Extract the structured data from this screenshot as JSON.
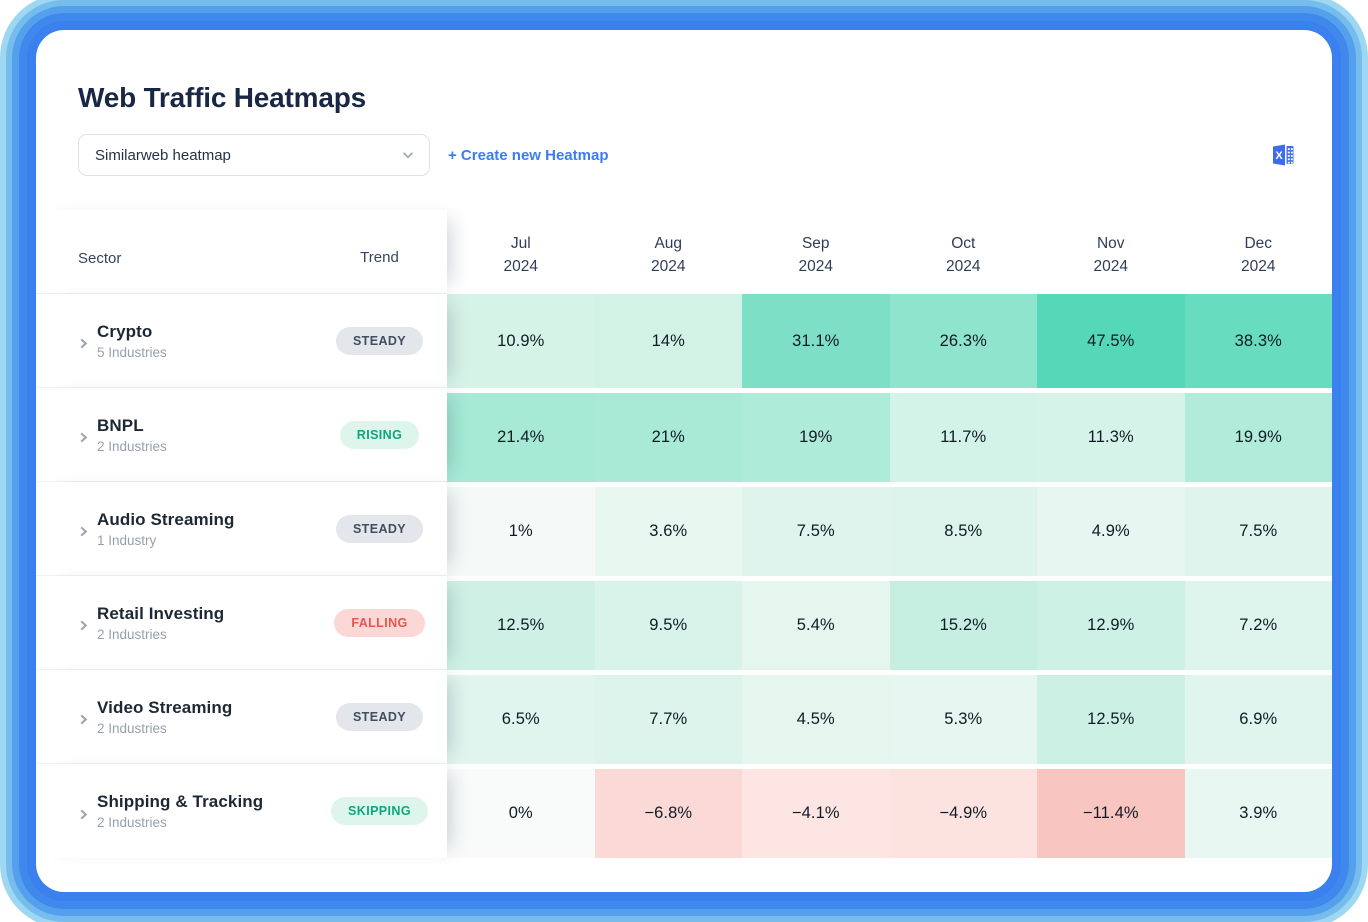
{
  "header": {
    "title": "Web Traffic Heatmaps",
    "dropdown_value": "Similarweb heatmap",
    "create_link": "+ Create new Heatmap",
    "excel_icon": "excel-export-icon"
  },
  "table": {
    "sector_header": "Sector",
    "trend_header": "Trend",
    "months": [
      {
        "month": "Jul",
        "year": "2024"
      },
      {
        "month": "Aug",
        "year": "2024"
      },
      {
        "month": "Sep",
        "year": "2024"
      },
      {
        "month": "Oct",
        "year": "2024"
      },
      {
        "month": "Nov",
        "year": "2024"
      },
      {
        "month": "Dec",
        "year": "2024"
      }
    ],
    "rows": [
      {
        "sector": "Crypto",
        "industries": "5 Industries",
        "trend": "STEADY",
        "trend_type": "steady",
        "values": [
          "10.9%",
          "14%",
          "31.1%",
          "26.3%",
          "47.5%",
          "38.3%"
        ],
        "cell_colors": [
          "#d6f3e8",
          "#d2f2e6",
          "#7de0c6",
          "#8fe4cd",
          "#55d8b8",
          "#68dcbf"
        ]
      },
      {
        "sector": "BNPL",
        "industries": "2 Industries",
        "trend": "RISING",
        "trend_type": "rising",
        "values": [
          "21.4%",
          "21%",
          "19%",
          "11.7%",
          "11.3%",
          "19.9%"
        ],
        "cell_colors": [
          "#a6ead5",
          "#a8ead6",
          "#aeebd8",
          "#d3f2e8",
          "#d5f3e9",
          "#b0ecd9"
        ]
      },
      {
        "sector": "Audio Streaming",
        "industries": "1 Industry",
        "trend": "STEADY",
        "trend_type": "steady",
        "values": [
          "1%",
          "3.6%",
          "7.5%",
          "8.5%",
          "4.9%",
          "7.5%"
        ],
        "cell_colors": [
          "#f5faf8",
          "#e9f7f1",
          "#def4ec",
          "#dcf4eb",
          "#e6f6f0",
          "#def4ec"
        ]
      },
      {
        "sector": "Retail Investing",
        "industries": "2 Industries",
        "trend": "FALLING",
        "trend_type": "falling",
        "values": [
          "12.5%",
          "9.5%",
          "5.4%",
          "15.2%",
          "12.9%",
          "7.2%"
        ],
        "cell_colors": [
          "#cff1e5",
          "#d8f3ea",
          "#e4f6ee",
          "#c7efe1",
          "#cef1e5",
          "#def5ed"
        ]
      },
      {
        "sector": "Video Streaming",
        "industries": "2 Industries",
        "trend": "STEADY",
        "trend_type": "steady",
        "values": [
          "6.5%",
          "7.7%",
          "4.5%",
          "5.3%",
          "12.5%",
          "6.9%"
        ],
        "cell_colors": [
          "#dff5ed",
          "#ddf4ec",
          "#e4f6ee",
          "#e6f6f0",
          "#ccf0e4",
          "#dff5ed"
        ]
      },
      {
        "sector": "Shipping & Tracking",
        "industries": "2 Industries",
        "trend": "SKIPPING",
        "trend_type": "skipping",
        "values": [
          "0%",
          "−6.8%",
          "−4.1%",
          "−4.9%",
          "−11.4%",
          "3.9%"
        ],
        "cell_colors": [
          "#f8fbfa",
          "#fbd9d6",
          "#fce5e2",
          "#fce3e0",
          "#f8c5c0",
          "#e8f7f1"
        ]
      }
    ]
  },
  "colors": {
    "accent_blue": "#3b7cf6",
    "title_navy": "#1a2744",
    "excel_icon_blue": "#3d6ce8",
    "frame_glow_outer": "#9ed7f2",
    "frame_glow_inner": "#3a80ee",
    "badges": {
      "steady": {
        "bg": "#e3e7ec",
        "text": "#414e61"
      },
      "rising": {
        "bg": "#def5ec",
        "text": "#0ea67c"
      },
      "falling": {
        "bg": "#fbd8d5",
        "text": "#e2574e"
      },
      "skipping": {
        "bg": "#def5ec",
        "text": "#0ea67c"
      }
    }
  },
  "chart_data": {
    "type": "heatmap",
    "x_categories": [
      "Jul 2024",
      "Aug 2024",
      "Sep 2024",
      "Oct 2024",
      "Nov 2024",
      "Dec 2024"
    ],
    "y_categories": [
      "Crypto",
      "BNPL",
      "Audio Streaming",
      "Retail Investing",
      "Video Streaming",
      "Shipping & Tracking"
    ],
    "values_percent": [
      [
        10.9,
        14,
        31.1,
        26.3,
        47.5,
        38.3
      ],
      [
        21.4,
        21,
        19,
        11.7,
        11.3,
        19.9
      ],
      [
        1,
        3.6,
        7.5,
        8.5,
        4.9,
        7.5
      ],
      [
        12.5,
        9.5,
        5.4,
        15.2,
        12.9,
        7.2
      ],
      [
        6.5,
        7.7,
        4.5,
        5.3,
        12.5,
        6.9
      ],
      [
        0,
        -6.8,
        -4.1,
        -4.9,
        -11.4,
        3.9
      ]
    ],
    "title": "Web Traffic Heatmaps",
    "legend_position": "none",
    "color_scale": "negative red to positive teal-green"
  }
}
